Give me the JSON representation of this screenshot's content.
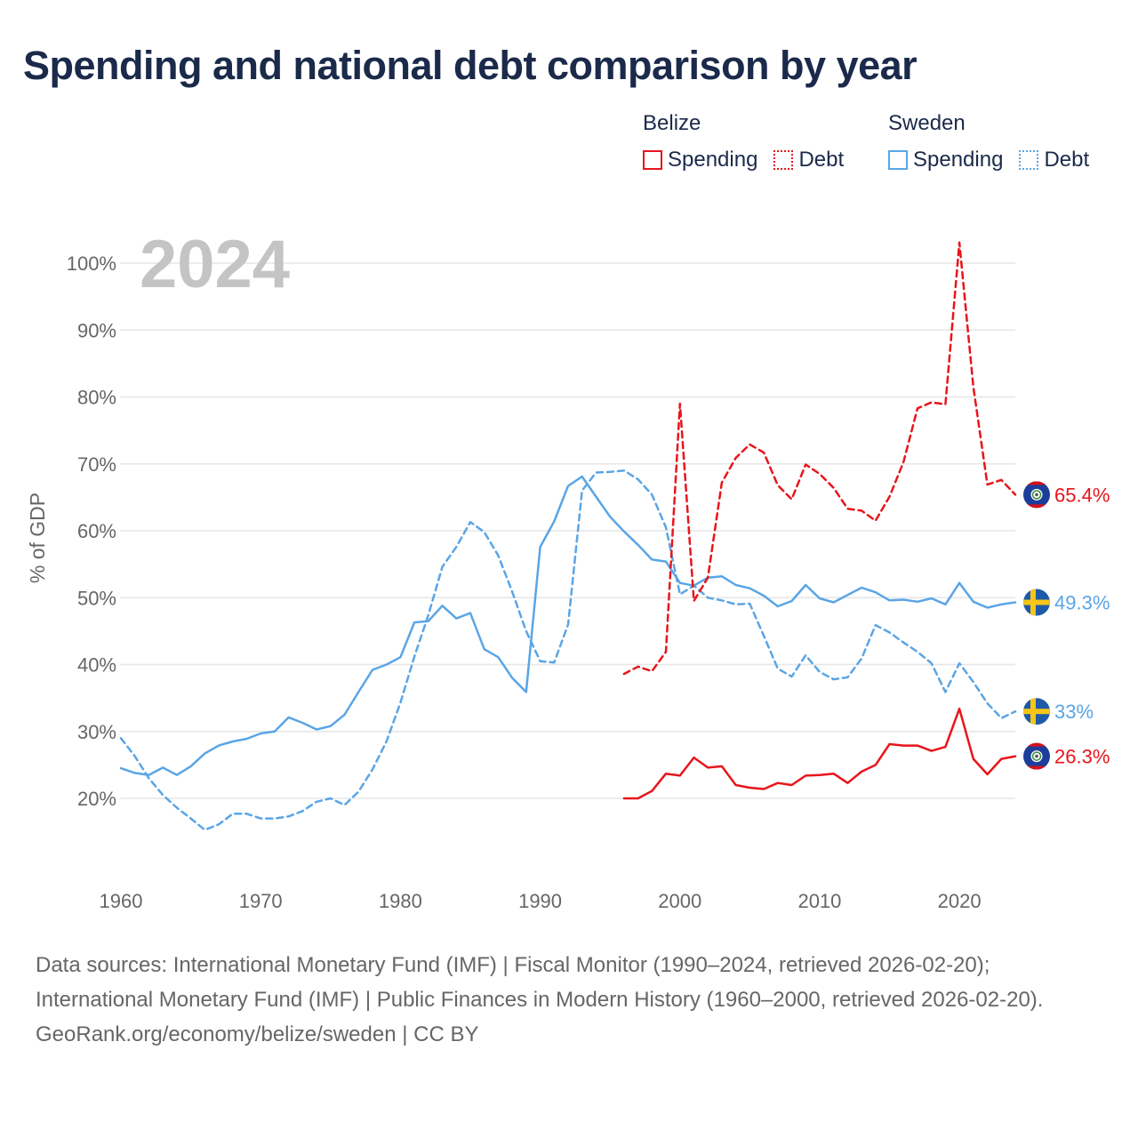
{
  "title": "Spending and national debt comparison by year",
  "legend": {
    "groups": [
      {
        "country": "Belize",
        "spending_label": "Spending",
        "debt_label": "Debt",
        "color": "#e8151b"
      },
      {
        "country": "Sweden",
        "spending_label": "Spending",
        "debt_label": "Debt",
        "color": "#5aa5e6"
      }
    ]
  },
  "chart_data": {
    "type": "line",
    "year_label": "2024",
    "ylabel": "% of GDP",
    "xlim": [
      1960,
      2024
    ],
    "ylim": [
      8,
      106
    ],
    "x_ticks": [
      1960,
      1970,
      1980,
      1990,
      2000,
      2010,
      2020
    ],
    "y_ticks": [
      20,
      30,
      40,
      50,
      60,
      70,
      80,
      90,
      100
    ],
    "y_tick_labels": [
      "20%",
      "30%",
      "40%",
      "50%",
      "60%",
      "70%",
      "80%",
      "90%",
      "100%"
    ],
    "series": [
      {
        "name": "Sweden Spending",
        "country": "Sweden",
        "style": "solid",
        "color": "#5aa5e6",
        "end_label": "49.3%",
        "x": [
          1960,
          1961,
          1962,
          1963,
          1964,
          1965,
          1966,
          1967,
          1968,
          1969,
          1970,
          1971,
          1972,
          1973,
          1974,
          1975,
          1976,
          1977,
          1978,
          1979,
          1980,
          1981,
          1982,
          1983,
          1984,
          1985,
          1986,
          1987,
          1988,
          1989,
          1990,
          1991,
          1992,
          1993,
          1994,
          1995,
          1996,
          1997,
          1998,
          1999,
          2000,
          2001,
          2002,
          2003,
          2004,
          2005,
          2006,
          2007,
          2008,
          2009,
          2010,
          2011,
          2012,
          2013,
          2014,
          2015,
          2016,
          2017,
          2018,
          2019,
          2020,
          2021,
          2022,
          2023,
          2024
        ],
        "y": [
          24.5,
          23.8,
          23.5,
          24.6,
          23.5,
          24.8,
          26.7,
          27.9,
          28.5,
          28.9,
          29.7,
          30.0,
          32.1,
          31.3,
          30.3,
          30.8,
          32.5,
          35.9,
          39.2,
          40.0,
          41.1,
          46.3,
          46.5,
          48.8,
          46.9,
          47.7,
          42.3,
          41.1,
          38.0,
          35.9,
          57.6,
          61.4,
          66.7,
          68.1,
          65.1,
          62.1,
          59.9,
          57.9,
          55.7,
          55.4,
          52.2,
          51.8,
          53.0,
          53.2,
          51.9,
          51.4,
          50.3,
          48.7,
          49.5,
          51.9,
          49.9,
          49.3,
          50.4,
          51.5,
          50.8,
          49.6,
          49.7,
          49.4,
          49.9,
          49.0,
          52.2,
          49.4,
          48.5,
          49.0,
          49.3
        ]
      },
      {
        "name": "Sweden Debt",
        "country": "Sweden",
        "style": "dashed",
        "color": "#5aa5e6",
        "end_label": "33%",
        "x": [
          1960,
          1961,
          1962,
          1963,
          1964,
          1965,
          1966,
          1967,
          1968,
          1969,
          1970,
          1971,
          1972,
          1973,
          1974,
          1975,
          1976,
          1977,
          1978,
          1979,
          1980,
          1981,
          1982,
          1983,
          1984,
          1985,
          1986,
          1987,
          1988,
          1989,
          1990,
          1991,
          1992,
          1993,
          1994,
          1995,
          1996,
          1997,
          1998,
          1999,
          2000,
          2001,
          2002,
          2003,
          2004,
          2005,
          2006,
          2007,
          2008,
          2009,
          2010,
          2011,
          2012,
          2013,
          2014,
          2015,
          2016,
          2017,
          2018,
          2019,
          2020,
          2021,
          2022,
          2023,
          2024
        ],
        "y": [
          29.0,
          26.3,
          23.0,
          20.5,
          18.6,
          17.0,
          15.3,
          16.1,
          17.7,
          17.7,
          17.0,
          17.0,
          17.3,
          18.1,
          19.5,
          20.0,
          19.0,
          21.0,
          24.3,
          28.5,
          34.3,
          41.2,
          47.4,
          54.6,
          57.6,
          61.3,
          59.8,
          56.3,
          50.9,
          45.0,
          40.5,
          40.3,
          46.0,
          66.0,
          68.7,
          68.8,
          69.0,
          67.7,
          65.4,
          60.5,
          50.5,
          51.8,
          50.0,
          49.6,
          49.0,
          49.1,
          44.3,
          39.4,
          38.2,
          41.4,
          38.9,
          37.8,
          38.1,
          40.9,
          45.9,
          44.8,
          43.3,
          41.9,
          40.2,
          35.9,
          40.2,
          37.4,
          34.2,
          32.0,
          33.0
        ]
      },
      {
        "name": "Belize Spending",
        "country": "Belize",
        "style": "solid",
        "color": "#e8151b",
        "end_label": "26.3%",
        "x": [
          1996,
          1997,
          1998,
          1999,
          2000,
          2001,
          2002,
          2003,
          2004,
          2005,
          2006,
          2007,
          2008,
          2009,
          2010,
          2011,
          2012,
          2013,
          2014,
          2015,
          2016,
          2017,
          2018,
          2019,
          2020,
          2021,
          2022,
          2023,
          2024
        ],
        "y": [
          20.0,
          20.0,
          21.1,
          23.7,
          23.4,
          26.1,
          24.6,
          24.8,
          22.0,
          21.6,
          21.4,
          22.3,
          22.0,
          23.4,
          23.5,
          23.7,
          22.3,
          24.0,
          25.0,
          28.1,
          27.9,
          27.9,
          27.1,
          27.7,
          33.4,
          25.9,
          23.6,
          25.9,
          26.3
        ]
      },
      {
        "name": "Belize Debt",
        "country": "Belize",
        "style": "dashed",
        "color": "#e8151b",
        "end_label": "65.4%",
        "x": [
          1996,
          1997,
          1998,
          1999,
          2000,
          2001,
          2002,
          2003,
          2004,
          2005,
          2006,
          2007,
          2008,
          2009,
          2010,
          2011,
          2012,
          2013,
          2014,
          2015,
          2016,
          2017,
          2018,
          2019,
          2020,
          2021,
          2022,
          2023,
          2024
        ],
        "y": [
          38.6,
          39.7,
          39.0,
          41.9,
          79.0,
          49.5,
          53.0,
          67.2,
          70.9,
          72.9,
          71.7,
          66.8,
          64.7,
          69.9,
          68.5,
          66.4,
          63.3,
          63.0,
          61.5,
          65.1,
          70.3,
          78.3,
          79.2,
          78.9,
          103.1,
          81.5,
          66.9,
          67.6,
          65.4
        ]
      }
    ]
  },
  "footer": {
    "sources": "Data sources: International Monetary Fund (IMF) | Fiscal Monitor (1990–2024, retrieved 2026-02-20); International Monetary Fund (IMF) | Public Finances in Modern History (1960–2000, retrieved 2026-02-20).",
    "credit": "GeoRank.org/economy/belize/sweden | CC BY"
  }
}
